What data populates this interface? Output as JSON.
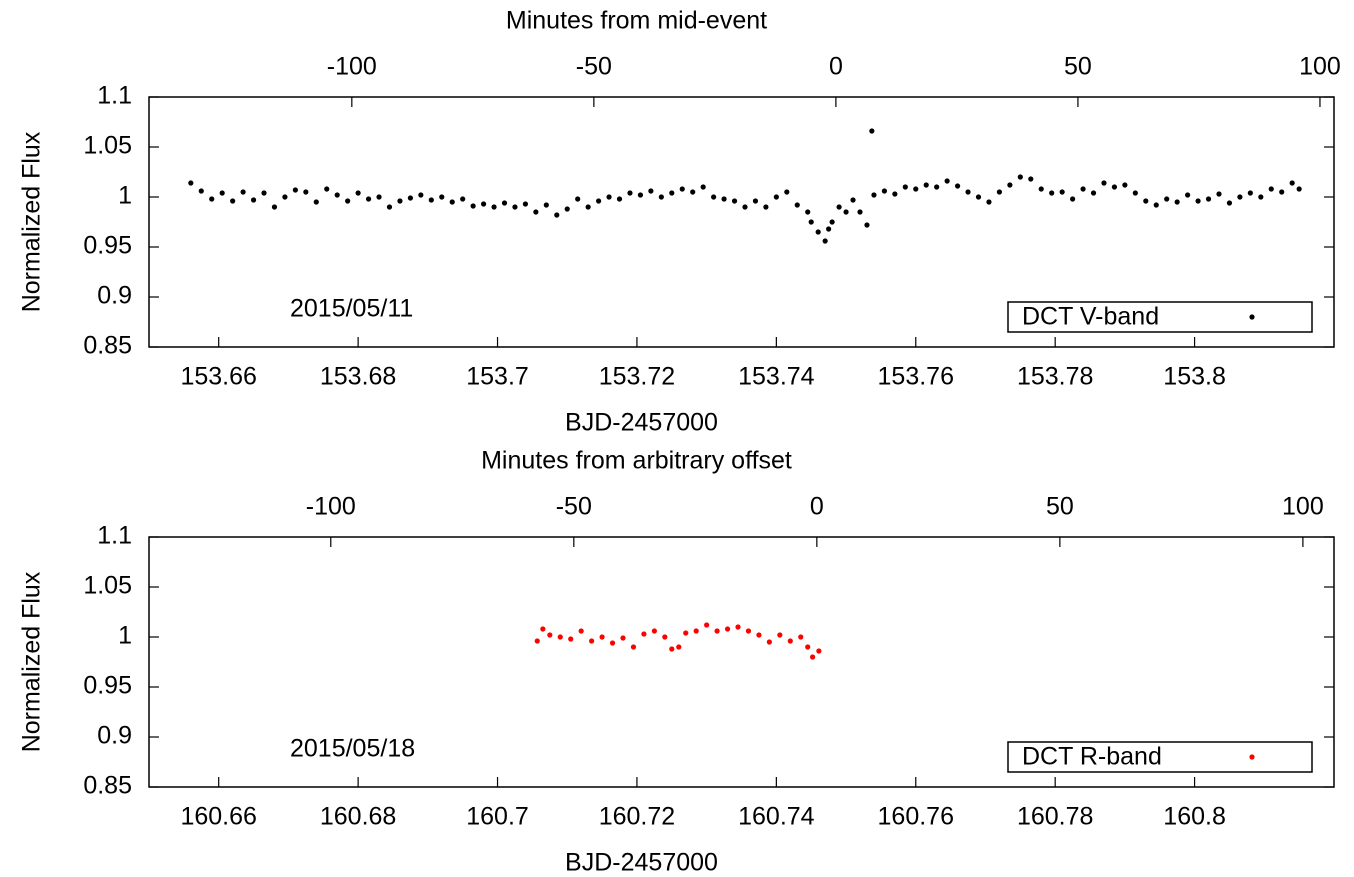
{
  "chart_data": [
    {
      "type": "scatter",
      "x2label": "Minutes from mid-event",
      "xlabel": "BJD-2457000",
      "ylabel": "Normalized Flux",
      "annotation": "2015/05/11",
      "legend": "lower right",
      "xlim": [
        153.65,
        153.82
      ],
      "xticks": [
        153.66,
        153.68,
        153.7,
        153.72,
        153.74,
        153.76,
        153.78,
        153.8
      ],
      "x2lim": [
        -141.9,
        102.9
      ],
      "x2ticks": [
        -100,
        -50,
        0,
        50,
        100
      ],
      "ylim": [
        0.85,
        1.1
      ],
      "yticks": [
        0.85,
        0.9,
        0.95,
        1,
        1.05,
        1.1
      ],
      "series": [
        {
          "name": "DCT V-band",
          "color": "#000000",
          "x": [
            153.656,
            153.6575,
            153.659,
            153.6605,
            153.662,
            153.6635,
            153.665,
            153.6665,
            153.668,
            153.6695,
            153.671,
            153.6725,
            153.674,
            153.6755,
            153.677,
            153.6785,
            153.68,
            153.6815,
            153.683,
            153.6845,
            153.686,
            153.6875,
            153.689,
            153.6905,
            153.692,
            153.6935,
            153.695,
            153.6965,
            153.698,
            153.6995,
            153.701,
            153.7025,
            153.704,
            153.7055,
            153.707,
            153.7085,
            153.71,
            153.7115,
            153.713,
            153.7145,
            153.716,
            153.7175,
            153.719,
            153.7205,
            153.722,
            153.7235,
            153.725,
            153.7265,
            153.728,
            153.7295,
            153.731,
            153.7325,
            153.734,
            153.7355,
            153.737,
            153.7385,
            153.74,
            153.7415,
            153.743,
            153.7445,
            153.745,
            153.746,
            153.747,
            153.7475,
            153.748,
            153.749,
            153.75,
            153.751,
            153.752,
            153.753,
            153.7537,
            153.754,
            153.7555,
            153.757,
            153.7585,
            153.76,
            153.7615,
            153.763,
            153.7645,
            153.766,
            153.7675,
            153.769,
            153.7705,
            153.772,
            153.7735,
            153.775,
            153.7765,
            153.778,
            153.7795,
            153.781,
            153.7825,
            153.784,
            153.7855,
            153.787,
            153.7885,
            153.79,
            153.7915,
            153.793,
            153.7945,
            153.796,
            153.7975,
            153.799,
            153.8005,
            153.802,
            153.8035,
            153.805,
            153.8065,
            153.808,
            153.8095,
            153.811,
            153.8125,
            153.814,
            153.815
          ],
          "values": [
            1.014,
            1.006,
            0.998,
            1.004,
            0.996,
            1.005,
            0.997,
            1.004,
            0.99,
            1.0,
            1.007,
            1.005,
            0.995,
            1.008,
            1.002,
            0.996,
            1.004,
            0.998,
            1.0,
            0.99,
            0.996,
            0.999,
            1.002,
            0.997,
            1.0,
            0.995,
            0.998,
            0.991,
            0.993,
            0.99,
            0.994,
            0.99,
            0.993,
            0.985,
            0.992,
            0.982,
            0.988,
            0.998,
            0.99,
            0.996,
            1.0,
            0.998,
            1.004,
            1.002,
            1.006,
            1.0,
            1.004,
            1.008,
            1.005,
            1.01,
            1.0,
            0.998,
            0.996,
            0.99,
            0.996,
            0.99,
            1.0,
            1.005,
            0.992,
            0.985,
            0.975,
            0.965,
            0.956,
            0.968,
            0.975,
            0.99,
            0.985,
            0.997,
            0.985,
            0.972,
            1.066,
            1.002,
            1.006,
            1.003,
            1.01,
            1.008,
            1.012,
            1.01,
            1.016,
            1.011,
            1.005,
            1.0,
            0.995,
            1.005,
            1.012,
            1.02,
            1.018,
            1.008,
            1.004,
            1.005,
            0.998,
            1.008,
            1.004,
            1.014,
            1.01,
            1.012,
            1.004,
            0.996,
            0.992,
            0.998,
            0.995,
            1.002,
            0.996,
            0.998,
            1.003,
            0.994,
            1.0,
            1.004,
            1.0,
            1.008,
            1.005,
            1.014,
            1.008
          ]
        }
      ]
    },
    {
      "type": "scatter",
      "x2label": "Minutes from arbitrary offset",
      "xlabel": "BJD-2457000",
      "ylabel": "Normalized Flux",
      "annotation": "2015/05/18",
      "legend": "lower right",
      "xlim": [
        160.65,
        160.82
      ],
      "xticks": [
        160.66,
        160.68,
        160.7,
        160.72,
        160.74,
        160.76,
        160.78,
        160.8
      ],
      "x2lim": [
        -137.4,
        106.4
      ],
      "x2ticks": [
        -100,
        -50,
        0,
        50,
        100
      ],
      "ylim": [
        0.85,
        1.1
      ],
      "yticks": [
        0.85,
        0.9,
        0.95,
        1,
        1.05,
        1.1
      ],
      "series": [
        {
          "name": "DCT R-band",
          "color": "#ff0000",
          "x": [
            160.7057,
            160.7065,
            160.7075,
            160.709,
            160.7105,
            160.712,
            160.7135,
            160.715,
            160.7165,
            160.718,
            160.7195,
            160.721,
            160.7225,
            160.724,
            160.725,
            160.726,
            160.727,
            160.7285,
            160.73,
            160.7315,
            160.733,
            160.7345,
            160.736,
            160.7375,
            160.739,
            160.7405,
            160.742,
            160.7435,
            160.7445,
            160.7452,
            160.7461
          ],
          "values": [
            0.996,
            1.008,
            1.002,
            1.0,
            0.998,
            1.006,
            0.996,
            1.0,
            0.994,
            0.999,
            0.99,
            1.003,
            1.006,
            1.0,
            0.988,
            0.99,
            1.004,
            1.006,
            1.012,
            1.006,
            1.008,
            1.01,
            1.006,
            1.002,
            0.995,
            1.002,
            0.996,
            1.0,
            0.99,
            0.98,
            0.986
          ]
        }
      ]
    }
  ]
}
